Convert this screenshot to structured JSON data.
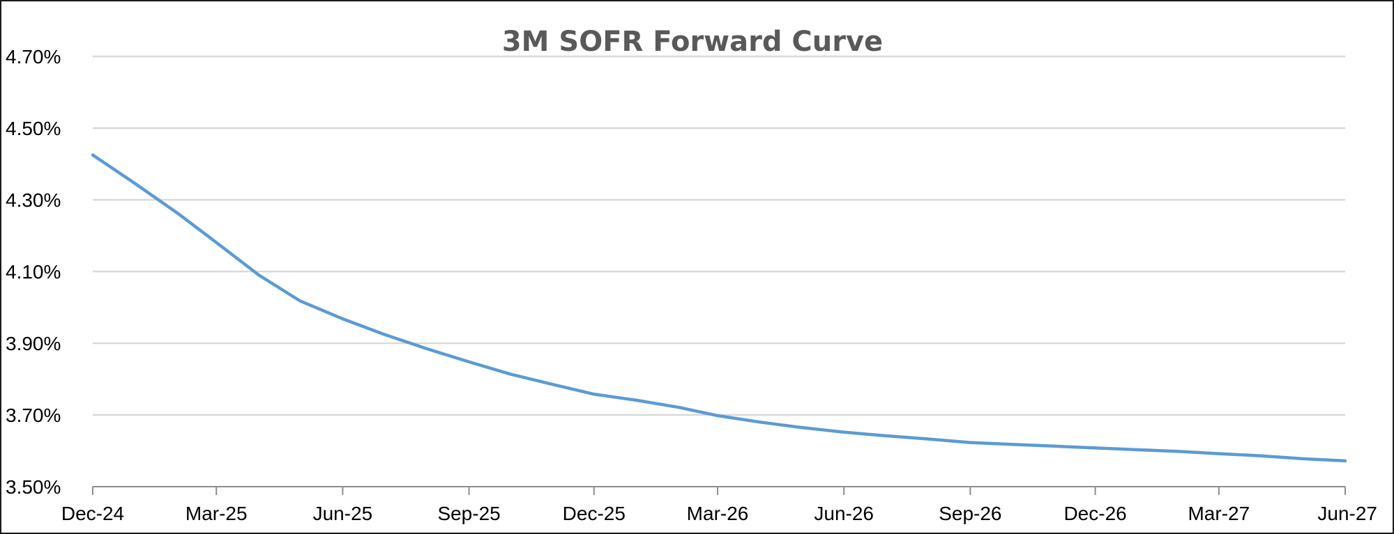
{
  "chart_data": {
    "type": "line",
    "title": "3M SOFR Forward Curve",
    "xlabel": "",
    "ylabel": "",
    "ylim": [
      3.5,
      4.7
    ],
    "y_ticks": [
      3.5,
      3.7,
      3.9,
      4.1,
      4.3,
      4.5,
      4.7
    ],
    "y_tick_labels": [
      "3.50%",
      "3.70%",
      "3.90%",
      "4.10%",
      "4.30%",
      "4.50%",
      "4.70%"
    ],
    "x_tick_labels": [
      "Dec-24",
      "Mar-25",
      "Jun-25",
      "Sep-25",
      "Dec-25",
      "Mar-26",
      "Jun-26",
      "Sep-26",
      "Dec-26",
      "Mar-27",
      "Jun-27"
    ],
    "x_range": [
      "2024-12-01",
      "2027-06-01"
    ],
    "grid": true,
    "legend": "none",
    "colors": {
      "line": "#5b9bd5",
      "title": "#595959",
      "grid": "#d9d9d9",
      "axis": "#8c8c8c"
    },
    "series": [
      {
        "x": [
          "2024-12-01",
          "2025-01-01",
          "2025-02-01",
          "2025-03-01",
          "2025-04-01",
          "2025-05-01",
          "2025-06-01",
          "2025-07-01",
          "2025-08-01",
          "2025-09-01",
          "2025-10-01",
          "2025-11-01",
          "2025-12-01",
          "2026-01-01",
          "2026-02-01",
          "2026-03-01",
          "2026-04-01",
          "2026-05-01",
          "2026-06-01",
          "2026-07-01",
          "2026-08-01",
          "2026-09-01",
          "2026-10-01",
          "2026-11-01",
          "2026-12-01",
          "2027-01-01",
          "2027-02-01",
          "2027-03-01",
          "2027-04-01",
          "2027-05-01",
          "2027-06-01"
        ],
        "values": [
          4.425,
          4.345,
          4.262,
          4.181,
          4.09,
          4.018,
          3.968,
          3.925,
          3.885,
          3.848,
          3.814,
          3.785,
          3.758,
          3.741,
          3.721,
          3.698,
          3.68,
          3.665,
          3.652,
          3.642,
          3.633,
          3.623,
          3.618,
          3.613,
          3.608,
          3.603,
          3.598,
          3.592,
          3.586,
          3.578,
          3.572
        ]
      }
    ]
  }
}
